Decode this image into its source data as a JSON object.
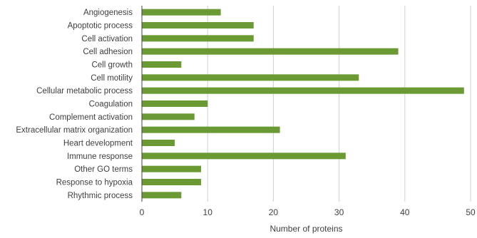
{
  "chart_data": {
    "type": "bar",
    "orientation": "horizontal",
    "categories": [
      "Angiogenesis",
      "Apoptotic process",
      "Cell activation",
      "Cell adhesion",
      "Cell growth",
      "Cell motility",
      "Cellular metabolic process",
      "Coagulation",
      "Complement activation",
      "Extracellular matrix organization",
      "Heart development",
      "Immune response",
      "Other GO terms",
      "Response to hypoxia",
      "Rhythmic process"
    ],
    "values": [
      12,
      17,
      17,
      39,
      6,
      33,
      49,
      10,
      8,
      21,
      5,
      31,
      9,
      9,
      6
    ],
    "xlabel": "Number of proteins",
    "ylabel": "",
    "xlim": [
      0,
      50
    ],
    "xticks": [
      0,
      10,
      20,
      30,
      40,
      50
    ],
    "grid": "vertical",
    "legend": "none",
    "bar_color": "#6b9a35",
    "grid_color": "#d0d0d0",
    "axis_color": "#404040"
  }
}
